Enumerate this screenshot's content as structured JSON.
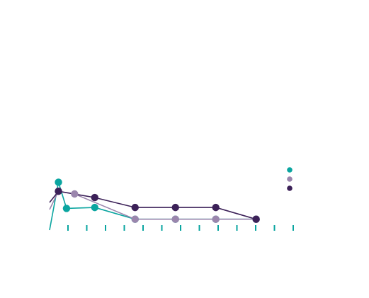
{
  "colors": {
    "background": "#ffffff",
    "series_1": "#0aa5a0",
    "series_2": "#9b86ad",
    "series_3": "#3c2158",
    "axis_ticks": "#0aa5a0"
  },
  "chart_data": {
    "type": "line",
    "title": "",
    "subtitle": "",
    "xlabel": "",
    "ylabel": "",
    "x": [
      0,
      1,
      3,
      5,
      10,
      20,
      30,
      40,
      50
    ],
    "xlim": [
      -1.2,
      62
    ],
    "ylim": [
      0,
      1
    ],
    "x_tick_count": 13,
    "grid": false,
    "legend_position": "right",
    "series": [
      {
        "color": "#0aa5a0",
        "x": [
          1,
          3,
          10,
          20,
          30,
          40,
          50
        ],
        "values": [
          0.265,
          0.12,
          0.125,
          0.06,
          0.06,
          0.06,
          0.06
        ]
      },
      {
        "color": "#9b86ad",
        "x": [
          1,
          5,
          20,
          30,
          40,
          50
        ],
        "values": [
          0.215,
          0.2,
          0.06,
          0.06,
          0.06,
          0.06
        ]
      },
      {
        "color": "#3c2158",
        "x": [
          1,
          10,
          20,
          30,
          40,
          50
        ],
        "values": [
          0.215,
          0.18,
          0.125,
          0.125,
          0.125,
          0.06
        ]
      }
    ]
  }
}
